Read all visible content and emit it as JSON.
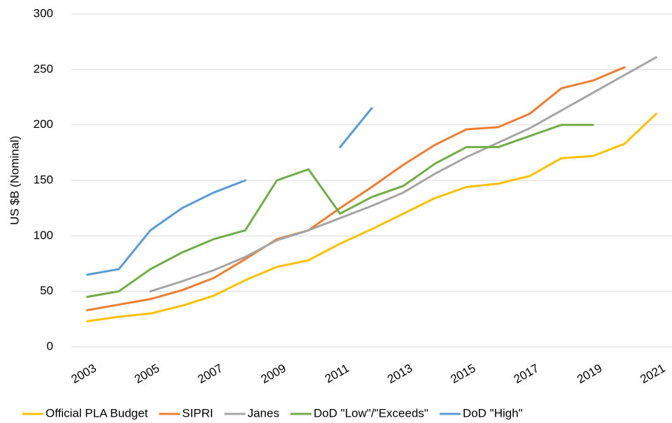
{
  "chart_data": {
    "type": "line",
    "y_label": "US $B (Nominal)",
    "categories": [
      "2003",
      null,
      "2005",
      null,
      "2007",
      null,
      "2009",
      null,
      "2011",
      null,
      "2013",
      null,
      "2015",
      null,
      "2017",
      null,
      "2019",
      null,
      "2021"
    ],
    "series": [
      {
        "name": "Official PLA Budget",
        "color": "#ffc000",
        "values": [
          23,
          27,
          30,
          37,
          46,
          60,
          72,
          78,
          93,
          106,
          120,
          134,
          144,
          147,
          154,
          170,
          172,
          183,
          210
        ]
      },
      {
        "name": "SIPRI",
        "color": "#ed7d31",
        "values": [
          33,
          38,
          43,
          51,
          62,
          79,
          97,
          105,
          125,
          144,
          164,
          182,
          196,
          198,
          210,
          233,
          240,
          252,
          null
        ]
      },
      {
        "name": "Janes",
        "color": "#a5a5a5",
        "values": [
          null,
          null,
          50,
          59,
          69,
          81,
          96,
          105,
          116,
          127,
          139,
          156,
          171,
          184,
          197,
          213,
          229,
          245,
          261
        ]
      },
      {
        "name": "DoD \"Low\"/\"Exceeds\"",
        "color": "#70ad47",
        "values": [
          45,
          50,
          70,
          85,
          97,
          105,
          150,
          160,
          120,
          135,
          145,
          165,
          180,
          180,
          190,
          200,
          200,
          null,
          null
        ]
      },
      {
        "name": "DoD \"High\"",
        "color": "#5b9bd5",
        "values": [
          65,
          70,
          105,
          125,
          139,
          150,
          null,
          null,
          180,
          215,
          null,
          null,
          null,
          null,
          null,
          null,
          null,
          null,
          null
        ]
      }
    ],
    "ylim": [
      0,
      300
    ],
    "yticks": [
      0,
      50,
      100,
      150,
      200,
      250,
      300
    ],
    "grid": true,
    "legend": "bottom"
  }
}
